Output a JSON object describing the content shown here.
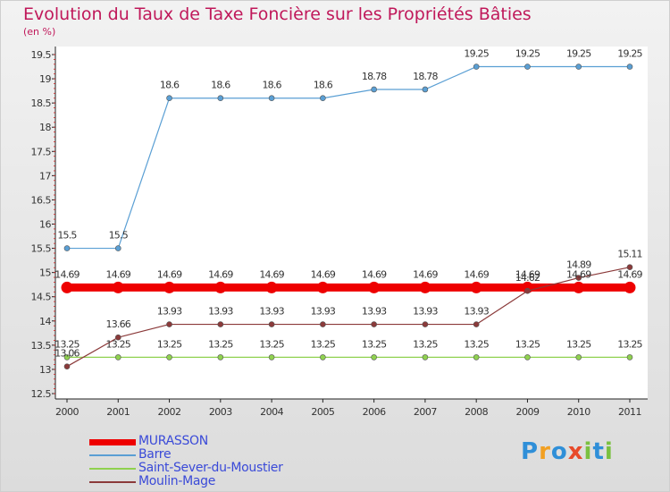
{
  "header": {
    "title": "Evolution du Taux de Taxe Foncière sur les Propriétés Bâties",
    "subtitle": "(en %)"
  },
  "logo": {
    "text": "Proxiti",
    "letters": [
      "P",
      "r",
      "o",
      "x",
      "i",
      "t",
      "i"
    ],
    "letter_colors": [
      "#2f8fd8",
      "#f2a022",
      "#2f8fd8",
      "#e84a2a",
      "#7ac040",
      "#2f8fd8",
      "#7ac040"
    ]
  },
  "chart_data": {
    "type": "line",
    "title": "Evolution du Taux de Taxe Foncière sur les Propriétés Bâties",
    "ylabel": "(en %)",
    "x": [
      2000,
      2001,
      2002,
      2003,
      2004,
      2005,
      2006,
      2007,
      2008,
      2009,
      2010,
      2011
    ],
    "xticks": [
      "2000",
      "2001",
      "2002",
      "2003",
      "2004",
      "2005",
      "2006",
      "2007",
      "2008",
      "2009",
      "2010",
      "2011"
    ],
    "ylim": [
      12.5,
      19.5
    ],
    "yticks": [
      12.5,
      13,
      13.5,
      14,
      14.5,
      15,
      15.5,
      16,
      16.5,
      17,
      17.5,
      18,
      18.5,
      19,
      19.5
    ],
    "ytick_labels": [
      "12.5",
      "13",
      "13.5",
      "14",
      "14.5",
      "15",
      "15.5",
      "16",
      "16.5",
      "17",
      "17.5",
      "18",
      "18.5",
      "19",
      "19.5"
    ],
    "grid": false,
    "legend_position": "bottom-left",
    "series": [
      {
        "name": "MURASSON",
        "color": "#ee0000",
        "values": [
          14.69,
          14.69,
          14.69,
          14.69,
          14.69,
          14.69,
          14.69,
          14.69,
          14.69,
          14.69,
          14.69,
          14.69
        ],
        "labels": [
          "14.69",
          "14.69",
          "14.69",
          "14.69",
          "14.69",
          "14.69",
          "14.69",
          "14.69",
          "14.69",
          "14.69",
          "14.69",
          "14.69"
        ]
      },
      {
        "name": "Barre",
        "color": "#5a9fd4",
        "values": [
          15.5,
          15.5,
          18.6,
          18.6,
          18.6,
          18.6,
          18.78,
          18.78,
          19.25,
          19.25,
          19.25,
          19.25
        ],
        "labels": [
          "15.5",
          "15.5",
          "18.6",
          "18.6",
          "18.6",
          "18.6",
          "18.78",
          "18.78",
          "19.25",
          "19.25",
          "19.25",
          "19.25"
        ]
      },
      {
        "name": "Saint-Sever-du-Moustier",
        "color": "#8fd14f",
        "values": [
          13.25,
          13.25,
          13.25,
          13.25,
          13.25,
          13.25,
          13.25,
          13.25,
          13.25,
          13.25,
          13.25,
          13.25
        ],
        "labels": [
          "13.25",
          "13.25",
          "13.25",
          "13.25",
          "13.25",
          "13.25",
          "13.25",
          "13.25",
          "13.25",
          "13.25",
          "13.25",
          "13.25"
        ]
      },
      {
        "name": "Moulin-Mage",
        "color": "#8b3a3a",
        "values": [
          13.06,
          13.66,
          13.93,
          13.93,
          13.93,
          13.93,
          13.93,
          13.93,
          13.93,
          14.62,
          14.89,
          15.11
        ],
        "labels": [
          "13.06",
          "13.66",
          "13.93",
          "13.93",
          "13.93",
          "13.93",
          "13.93",
          "13.93",
          "13.93",
          "14.62",
          "14.89",
          "15.11"
        ]
      }
    ]
  }
}
